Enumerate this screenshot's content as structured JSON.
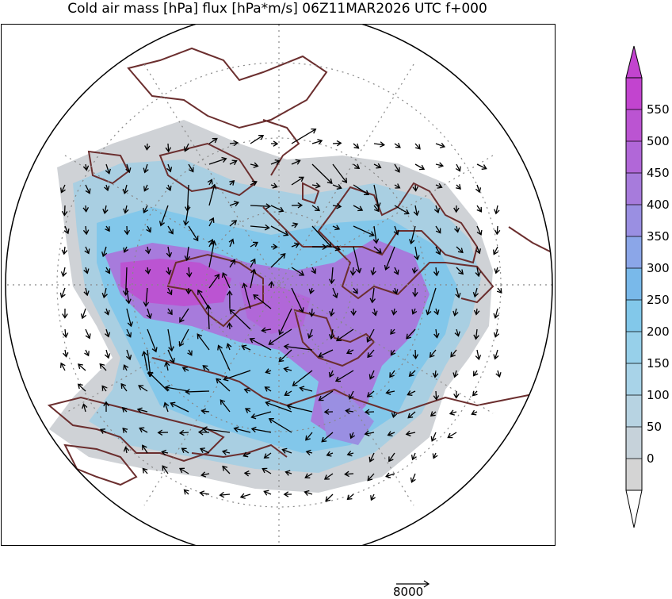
{
  "title": "Cold air mass [hPa] flux [hPa*m/s] 06Z11MAR2026 UTC f+000",
  "colorbar": {
    "levels": [
      "0",
      "50",
      "100",
      "150",
      "200",
      "250",
      "300",
      "350",
      "400",
      "450",
      "500",
      "550"
    ],
    "colors": [
      "#d4d4d4",
      "#c6d2da",
      "#b7d3e2",
      "#a8d3e8",
      "#97d0ea",
      "#82c8ea",
      "#79b9ea",
      "#8ba6e8",
      "#9a8fe2",
      "#a77bdc",
      "#b167d8",
      "#bb54d2",
      "#c244cf"
    ]
  },
  "reference_vector": {
    "label": "8000"
  },
  "map": {
    "projection": "north polar stereographic",
    "field_colors": {
      "background": "#ffffff",
      "land": "#6b2e2e",
      "graticule": "#888888",
      "arrow": "#000000"
    }
  }
}
